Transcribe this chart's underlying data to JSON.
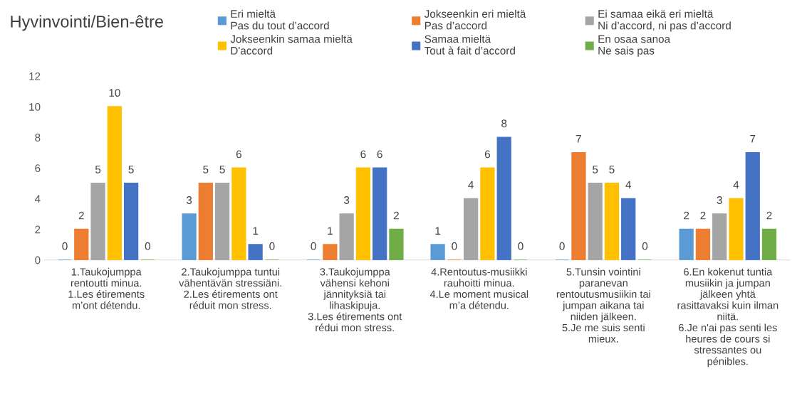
{
  "chart_data": {
    "type": "bar",
    "title": "Hyvinvointi/Bien-être",
    "categories": [
      "1.Taukojumppa\nrentoutti minua.\n1.Les étirements\nm’ont détendu.",
      "2.Taukojumppa tuntui\nvähentävän stressiäni.\n2.Les étirements ont\nréduit mon stress.",
      "3.Taukojumppa\nvähensi kehoni\njännityksiä tai\nlihaskipuja.\n3.Les étirements ont\nrédui mon stress.",
      "4.Rentoutus-musiikki\nrauhoitti minua.\n4.Le moment musical\nm’a détendu.",
      "5.Tunsin vointini\nparanevan\nrentoutusmusiikin tai\njumpan aikana tai\nniiden jälkeen.\n5.Je me suis senti\nmieux.",
      "6.En kokenut tuntia\nmusiikin ja jumpan\njälkeen yhtä\nrasittavaksi kuin ilman\nniitä.\n6.Je n'ai pas senti les\nheures de cours si\nstressantes ou\npénibles."
    ],
    "series": [
      {
        "name": "Eri mieltä\nPas du tout d’accord",
        "color": "#5b9bd5",
        "values": [
          0,
          3,
          0,
          1,
          0,
          2
        ]
      },
      {
        "name": "Jokseenkin eri mieltä\nPas d’accord",
        "color": "#ed7d31",
        "values": [
          2,
          5,
          1,
          0,
          7,
          2
        ]
      },
      {
        "name": "Ei samaa eikä eri mieltä\nNi d’accord, ni pas d’accord",
        "color": "#a5a5a5",
        "values": [
          5,
          5,
          3,
          4,
          5,
          3
        ]
      },
      {
        "name": "Jokseenkin samaa mieltä\nD'accord",
        "color": "#ffc000",
        "values": [
          10,
          6,
          6,
          6,
          5,
          4
        ]
      },
      {
        "name": "Samaa mieltä\nTout à fait d’accord",
        "color": "#4472c4",
        "values": [
          5,
          1,
          6,
          8,
          4,
          7
        ]
      },
      {
        "name": "En osaa sanoa\nNe sais pas",
        "color": "#70ad47",
        "values": [
          0,
          0,
          2,
          0,
          0,
          2
        ]
      }
    ],
    "ylim": [
      0,
      12
    ],
    "yticks": [
      0,
      2,
      4,
      6,
      8,
      10,
      12
    ],
    "data_labels": true,
    "grid": false,
    "legend": "top"
  }
}
